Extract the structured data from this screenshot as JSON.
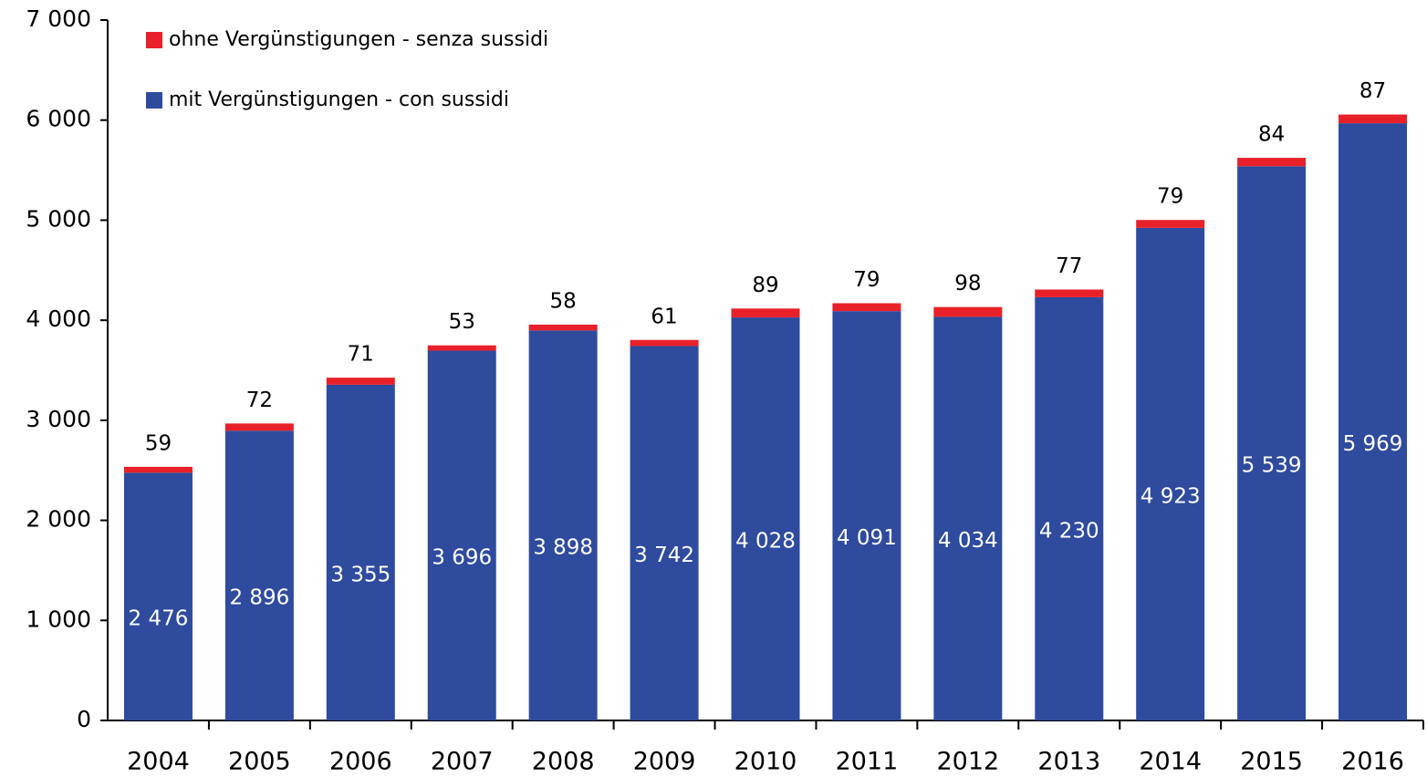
{
  "chart_data": {
    "type": "stacked_bar",
    "categories": [
      "2004",
      "2005",
      "2006",
      "2007",
      "2008",
      "2009",
      "2010",
      "2011",
      "2012",
      "2013",
      "2014",
      "2015",
      "2016"
    ],
    "series": [
      {
        "name": "mit Vergünstigungen - con sussidi",
        "color": "#2e4b9e",
        "values": [
          2476,
          2896,
          3355,
          3696,
          3898,
          3742,
          4028,
          4091,
          4034,
          4230,
          4923,
          5539,
          5969
        ],
        "value_labels": [
          "2 476",
          "2 896",
          "3 355",
          "3 696",
          "3 898",
          "3 742",
          "4 028",
          "4 091",
          "4 034",
          "4 230",
          "4 923",
          "5 539",
          "5 969"
        ]
      },
      {
        "name": "ohne Vergünstigungen - senza sussidi",
        "color": "#e8202a",
        "values": [
          59,
          72,
          71,
          53,
          58,
          61,
          89,
          79,
          98,
          77,
          79,
          84,
          87
        ]
      }
    ],
    "ylim": [
      0,
      7000
    ],
    "yticks": [
      0,
      {
        "value": 1000,
        "label": "1 000"
      },
      {
        "value": 2000,
        "label": "2 000"
      },
      {
        "value": 3000,
        "label": "3 000"
      },
      {
        "value": 4000,
        "label": "4 000"
      },
      {
        "value": 5000,
        "label": "5 000"
      },
      {
        "value": 6000,
        "label": "6 000"
      },
      {
        "value": 7000,
        "label": "7 000"
      }
    ],
    "legend": "top-left"
  }
}
